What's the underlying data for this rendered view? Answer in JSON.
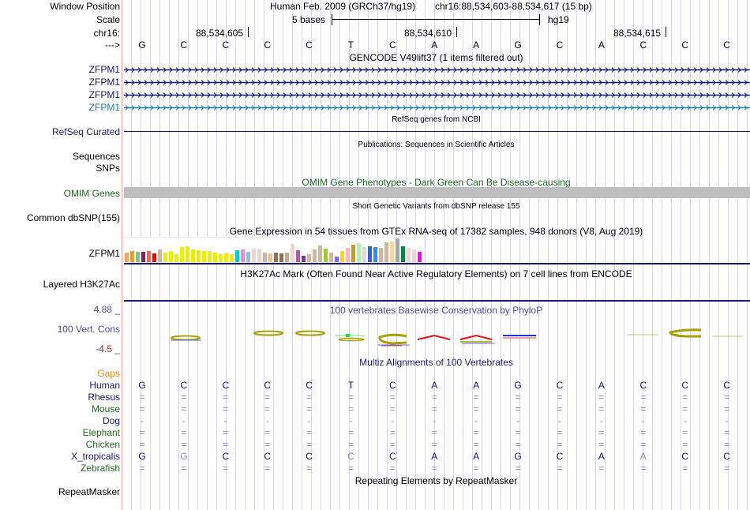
{
  "ruler": {
    "window_position_label": "Window Position",
    "scale_label": "Scale",
    "chrom_label": "chr16:",
    "strand_label": "--->",
    "assembly_title": "Human Feb. 2009 (GRCh37/hg19)",
    "position": "chr16:88,534,603-88,534,617 (15 bp)",
    "scale_text": "5 bases",
    "scale_assembly": "hg19",
    "ticks": [
      "88,534,605",
      "88,534,610",
      "88,534,615"
    ],
    "bases": [
      "G",
      "C",
      "C",
      "C",
      "C",
      "T",
      "C",
      "A",
      "A",
      "G",
      "C",
      "A",
      "C",
      "C",
      "C"
    ]
  },
  "tracks": {
    "gencode": {
      "title": "GENCODE V49lift37 (1 items filtered out)",
      "items": [
        {
          "label": "ZFPM1",
          "color": "#14146e"
        },
        {
          "label": "ZFPM1",
          "color": "#14146e"
        },
        {
          "label": "ZFPM1",
          "color": "#14146e"
        },
        {
          "label": "ZFPM1",
          "color": "#1a7aa6"
        }
      ]
    },
    "refseq": {
      "label": "RefSeq Curated",
      "title": "RefSeq genes from NCBI"
    },
    "publications": {
      "label_1": "Sequences",
      "label_2": "SNPs",
      "title": "Publications: Sequences in Scientific Articles"
    },
    "omim": {
      "label": "OMIM Genes",
      "title": "OMIM Gene Phenotypes - Dark Green Can Be Disease-causing",
      "bar_color": "#bebebe"
    },
    "dbsnp": {
      "label": "Common dbSNP(155)",
      "title": "Short Genetic Variants from dbSNP release 155"
    },
    "gtex": {
      "label": "ZFPM1",
      "title": "Gene Expression in 54 tissues from GTEx RNA-seq of 17382 samples, 948 donors (V8, Aug 2019)",
      "bars": [
        {
          "color": "#f7a35c",
          "v": 0.4
        },
        {
          "color": "#f0a000",
          "v": 0.47
        },
        {
          "color": "#8fbc8f",
          "v": 0.43
        },
        {
          "color": "#8b1c62",
          "v": 0.43
        },
        {
          "color": "#ee6a50",
          "v": 0.47
        },
        {
          "color": "#ff0000",
          "v": 0.37
        },
        {
          "color": "#cdb79e",
          "v": 0.53
        },
        {
          "color": "#eeee00",
          "v": 0.4
        },
        {
          "color": "#eeee00",
          "v": 0.47
        },
        {
          "color": "#eeee00",
          "v": 0.33
        },
        {
          "color": "#eeee00",
          "v": 0.63
        },
        {
          "color": "#eeee00",
          "v": 0.67
        },
        {
          "color": "#eeee00",
          "v": 0.53
        },
        {
          "color": "#eeee00",
          "v": 0.5
        },
        {
          "color": "#eeee00",
          "v": 0.47
        },
        {
          "color": "#eeee00",
          "v": 0.47
        },
        {
          "color": "#eeee00",
          "v": 0.4
        },
        {
          "color": "#eeee00",
          "v": 0.33
        },
        {
          "color": "#eeee00",
          "v": 0.37
        },
        {
          "color": "#eeee00",
          "v": 0.33
        },
        {
          "color": "#00cdcd",
          "v": 0.5
        },
        {
          "color": "#ee82ee",
          "v": 0.53
        },
        {
          "color": "#9ac0cd",
          "v": 0.43
        },
        {
          "color": "#eed5d2",
          "v": 0.57
        },
        {
          "color": "#eed5d2",
          "v": 0.57
        },
        {
          "color": "#cdb79e",
          "v": 0.4
        },
        {
          "color": "#edc28e",
          "v": 0.37
        },
        {
          "color": "#8b7355",
          "v": 0.4
        },
        {
          "color": "#8b7355",
          "v": 0.37
        },
        {
          "color": "#cdaa7d",
          "v": 0.4
        },
        {
          "color": "#eed5d2",
          "v": 0.77
        },
        {
          "color": "#b452cd",
          "v": 0.5
        },
        {
          "color": "#7a378b",
          "v": 0.27
        },
        {
          "color": "#cdb79e",
          "v": 0.33
        },
        {
          "color": "#cdb79e",
          "v": 0.53
        },
        {
          "color": "#cdb79e",
          "v": 0.7
        },
        {
          "color": "#9acd32",
          "v": 0.57
        },
        {
          "color": "#cdb79e",
          "v": 0.4
        },
        {
          "color": "#7b68ee",
          "v": 0.23
        },
        {
          "color": "#ffd700",
          "v": 0.47
        },
        {
          "color": "#ffb6c1",
          "v": 0.6
        },
        {
          "color": "#cd9b1d",
          "v": 0.73
        },
        {
          "color": "#b3eeb3",
          "v": 0.8
        },
        {
          "color": "#d9d9d9",
          "v": 0.63
        },
        {
          "color": "#3a5fcd",
          "v": 0.67
        },
        {
          "color": "#1e90ff",
          "v": 0.63
        },
        {
          "color": "#cdb79e",
          "v": 0.6
        },
        {
          "color": "#cdb79e",
          "v": 0.83
        },
        {
          "color": "#ffd39b",
          "v": 0.87
        },
        {
          "color": "#a6a6a6",
          "v": 1.0
        },
        {
          "color": "#008b45",
          "v": 0.67
        },
        {
          "color": "#eed5d2",
          "v": 0.6
        },
        {
          "color": "#eed5d2",
          "v": 0.53
        },
        {
          "color": "#ff00ff",
          "v": 0.43
        }
      ]
    },
    "h3k27ac": {
      "label": "Layered H3K27Ac",
      "title": "H3K27Ac Mark (Often Found Near Active Regulatory Elements) on 7 cell lines from ENCODE"
    },
    "phylop": {
      "label": "100 Vert. Cons",
      "max_label": "4.88 _",
      "min_label": "-4.5 _",
      "title": "100 vertebrates Basewise Conservation by PhyloP"
    },
    "multiz": {
      "title": "Multiz Alignments of 100 Vertebrates",
      "gaps_label": "Gaps",
      "species": [
        {
          "name": "Human",
          "color": "#14146e",
          "row": [
            "G",
            "C",
            "C",
            "C",
            "C",
            "T",
            "C",
            "A",
            "A",
            "G",
            "C",
            "A",
            "C",
            "C",
            "C"
          ]
        },
        {
          "name": "Rhesus",
          "color": "#14146e",
          "row": [
            "=",
            "=",
            "=",
            "=",
            "=",
            "=",
            "=",
            "=",
            "=",
            "=",
            "=",
            "=",
            "=",
            "=",
            "="
          ]
        },
        {
          "name": "Mouse",
          "color": "#1e6b1e",
          "row": [
            "=",
            "=",
            "=",
            "=",
            "=",
            "=",
            "=",
            "=",
            "=",
            "=",
            "=",
            "=",
            "=",
            "=",
            "="
          ]
        },
        {
          "name": "Dog",
          "color": "#14146e",
          "row": [
            "-",
            "-",
            "-",
            "-",
            "-",
            "-",
            "-",
            "-",
            "-",
            "-",
            "-",
            "-",
            "-",
            "-",
            "-"
          ]
        },
        {
          "name": "Elephant",
          "color": "#1e6b1e",
          "row": [
            "=",
            "=",
            "=",
            "=",
            "=",
            "=",
            "=",
            "=",
            "=",
            "=",
            "=",
            "=",
            "=",
            "=",
            "="
          ]
        },
        {
          "name": "Chicken",
          "color": "#1e6b1e",
          "row": [
            "=",
            "=",
            "=",
            "=",
            "=",
            "=",
            "=",
            "=",
            "=",
            "=",
            "=",
            "=",
            "=",
            "=",
            "="
          ]
        },
        {
          "name": "X_tropicalis",
          "color": "#14146e",
          "row": [
            "G",
            "G",
            "C",
            "C",
            "C",
            "C",
            "C",
            "A",
            "A",
            "G",
            "C",
            "A",
            "A",
            "C",
            "C"
          ]
        },
        {
          "name": "Zebrafish",
          "color": "#1e6b1e",
          "row": [
            "=",
            "=",
            "=",
            "=",
            "=",
            "=",
            "=",
            "=",
            "=",
            "=",
            "=",
            "=",
            "=",
            "=",
            "="
          ]
        }
      ],
      "x_tropicalis_faded": [
        1,
        5,
        12
      ]
    },
    "repeatmasker": {
      "label": "RepeatMasker",
      "title": "Repeating Elements by RepeatMasker"
    }
  }
}
